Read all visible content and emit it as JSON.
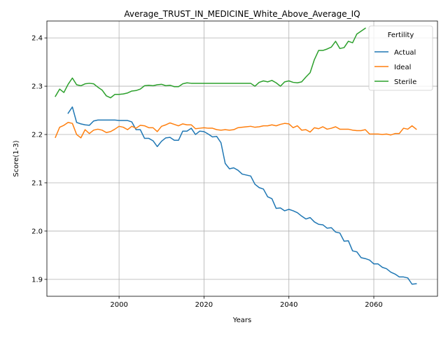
{
  "chart_data": {
    "type": "line",
    "title": "Average_TRUST_IN_MEDICINE_White_Above_Average_IQ",
    "xlabel": "Years",
    "ylabel": "Score(1-3)",
    "xlim": [
      1983,
      2075
    ],
    "ylim": [
      1.865,
      2.435
    ],
    "xticks": [
      2000,
      2020,
      2040,
      2060
    ],
    "yticks": [
      1.9,
      2.0,
      2.1,
      2.2,
      2.3,
      2.4
    ],
    "grid": true,
    "legend": {
      "title": "Fertility",
      "placement": "upper-right"
    },
    "series": [
      {
        "name": "Actual",
        "color": "#1f77b4",
        "points": [
          [
            1988,
            2.244
          ],
          [
            1989,
            2.257
          ],
          [
            1990,
            2.225
          ],
          [
            1991,
            2.222
          ],
          [
            1992,
            2.22
          ],
          [
            1993,
            2.219
          ],
          [
            1994,
            2.228
          ],
          [
            1995,
            2.23
          ],
          [
            1996,
            2.23
          ],
          [
            1997,
            2.23
          ],
          [
            1998,
            2.23
          ],
          [
            1999,
            2.23
          ],
          [
            2000,
            2.229
          ],
          [
            2001,
            2.229
          ],
          [
            2002,
            2.229
          ],
          [
            2003,
            2.226
          ],
          [
            2004,
            2.21
          ],
          [
            2005,
            2.21
          ],
          [
            2006,
            2.192
          ],
          [
            2007,
            2.192
          ],
          [
            2008,
            2.187
          ],
          [
            2009,
            2.175
          ],
          [
            2010,
            2.186
          ],
          [
            2011,
            2.193
          ],
          [
            2012,
            2.194
          ],
          [
            2013,
            2.188
          ],
          [
            2014,
            2.188
          ],
          [
            2015,
            2.207
          ],
          [
            2016,
            2.207
          ],
          [
            2017,
            2.213
          ],
          [
            2018,
            2.2
          ],
          [
            2019,
            2.207
          ],
          [
            2020,
            2.206
          ],
          [
            2021,
            2.201
          ],
          [
            2022,
            2.195
          ],
          [
            2023,
            2.196
          ],
          [
            2024,
            2.183
          ],
          [
            2025,
            2.14
          ],
          [
            2026,
            2.129
          ],
          [
            2027,
            2.131
          ],
          [
            2028,
            2.126
          ],
          [
            2029,
            2.118
          ],
          [
            2030,
            2.116
          ],
          [
            2031,
            2.114
          ],
          [
            2032,
            2.097
          ],
          [
            2033,
            2.09
          ],
          [
            2034,
            2.087
          ],
          [
            2035,
            2.071
          ],
          [
            2036,
            2.067
          ],
          [
            2037,
            2.047
          ],
          [
            2038,
            2.048
          ],
          [
            2039,
            2.042
          ],
          [
            2040,
            2.045
          ],
          [
            2041,
            2.042
          ],
          [
            2042,
            2.038
          ],
          [
            2043,
            2.031
          ],
          [
            2044,
            2.025
          ],
          [
            2045,
            2.028
          ],
          [
            2046,
            2.019
          ],
          [
            2047,
            2.014
          ],
          [
            2048,
            2.013
          ],
          [
            2049,
            2.006
          ],
          [
            2050,
            2.007
          ],
          [
            2051,
            1.998
          ],
          [
            2052,
            1.996
          ],
          [
            2053,
            1.979
          ],
          [
            2054,
            1.98
          ],
          [
            2055,
            1.959
          ],
          [
            2056,
            1.957
          ],
          [
            2057,
            1.945
          ],
          [
            2058,
            1.943
          ],
          [
            2059,
            1.94
          ],
          [
            2060,
            1.932
          ],
          [
            2061,
            1.932
          ],
          [
            2062,
            1.925
          ],
          [
            2063,
            1.922
          ],
          [
            2064,
            1.915
          ],
          [
            2065,
            1.911
          ],
          [
            2066,
            1.905
          ],
          [
            2067,
            1.905
          ],
          [
            2068,
            1.903
          ],
          [
            2069,
            1.89
          ],
          [
            2070,
            1.891
          ]
        ]
      },
      {
        "name": "Ideal",
        "color": "#ff7f0e",
        "points": [
          [
            1985,
            2.194
          ],
          [
            1986,
            2.215
          ],
          [
            1987,
            2.219
          ],
          [
            1988,
            2.225
          ],
          [
            1989,
            2.223
          ],
          [
            1990,
            2.2
          ],
          [
            1991,
            2.193
          ],
          [
            1992,
            2.21
          ],
          [
            1993,
            2.202
          ],
          [
            1994,
            2.209
          ],
          [
            1995,
            2.211
          ],
          [
            1996,
            2.209
          ],
          [
            1997,
            2.204
          ],
          [
            1998,
            2.206
          ],
          [
            1999,
            2.211
          ],
          [
            2000,
            2.217
          ],
          [
            2001,
            2.215
          ],
          [
            2002,
            2.21
          ],
          [
            2003,
            2.217
          ],
          [
            2004,
            2.213
          ],
          [
            2005,
            2.219
          ],
          [
            2006,
            2.218
          ],
          [
            2007,
            2.214
          ],
          [
            2008,
            2.214
          ],
          [
            2009,
            2.206
          ],
          [
            2010,
            2.217
          ],
          [
            2011,
            2.22
          ],
          [
            2012,
            2.224
          ],
          [
            2013,
            2.221
          ],
          [
            2014,
            2.218
          ],
          [
            2015,
            2.222
          ],
          [
            2016,
            2.22
          ],
          [
            2017,
            2.22
          ],
          [
            2018,
            2.212
          ],
          [
            2019,
            2.213
          ],
          [
            2020,
            2.214
          ],
          [
            2021,
            2.213
          ],
          [
            2022,
            2.213
          ],
          [
            2023,
            2.21
          ],
          [
            2024,
            2.209
          ],
          [
            2025,
            2.21
          ],
          [
            2026,
            2.209
          ],
          [
            2027,
            2.21
          ],
          [
            2028,
            2.214
          ],
          [
            2029,
            2.215
          ],
          [
            2030,
            2.216
          ],
          [
            2031,
            2.217
          ],
          [
            2032,
            2.215
          ],
          [
            2033,
            2.216
          ],
          [
            2034,
            2.218
          ],
          [
            2035,
            2.218
          ],
          [
            2036,
            2.22
          ],
          [
            2037,
            2.218
          ],
          [
            2038,
            2.221
          ],
          [
            2039,
            2.223
          ],
          [
            2040,
            2.222
          ],
          [
            2041,
            2.214
          ],
          [
            2042,
            2.218
          ],
          [
            2043,
            2.209
          ],
          [
            2044,
            2.21
          ],
          [
            2045,
            2.205
          ],
          [
            2046,
            2.214
          ],
          [
            2047,
            2.212
          ],
          [
            2048,
            2.216
          ],
          [
            2049,
            2.211
          ],
          [
            2050,
            2.213
          ],
          [
            2051,
            2.216
          ],
          [
            2052,
            2.211
          ],
          [
            2053,
            2.211
          ],
          [
            2054,
            2.211
          ],
          [
            2055,
            2.209
          ],
          [
            2056,
            2.208
          ],
          [
            2057,
            2.208
          ],
          [
            2058,
            2.21
          ],
          [
            2059,
            2.201
          ],
          [
            2060,
            2.201
          ],
          [
            2061,
            2.201
          ],
          [
            2062,
            2.2
          ],
          [
            2063,
            2.201
          ],
          [
            2064,
            2.199
          ],
          [
            2065,
            2.202
          ],
          [
            2066,
            2.202
          ],
          [
            2067,
            2.213
          ],
          [
            2068,
            2.211
          ],
          [
            2069,
            2.218
          ],
          [
            2070,
            2.211
          ]
        ]
      },
      {
        "name": "Sterile",
        "color": "#2ca02c",
        "points": [
          [
            1985,
            2.279
          ],
          [
            1986,
            2.294
          ],
          [
            1987,
            2.287
          ],
          [
            1988,
            2.304
          ],
          [
            1989,
            2.317
          ],
          [
            1990,
            2.303
          ],
          [
            1991,
            2.301
          ],
          [
            1992,
            2.305
          ],
          [
            1993,
            2.306
          ],
          [
            1994,
            2.305
          ],
          [
            1995,
            2.298
          ],
          [
            1996,
            2.292
          ],
          [
            1997,
            2.28
          ],
          [
            1998,
            2.276
          ],
          [
            1999,
            2.283
          ],
          [
            2000,
            2.283
          ],
          [
            2001,
            2.284
          ],
          [
            2002,
            2.286
          ],
          [
            2003,
            2.29
          ],
          [
            2004,
            2.291
          ],
          [
            2005,
            2.294
          ],
          [
            2006,
            2.301
          ],
          [
            2007,
            2.302
          ],
          [
            2008,
            2.301
          ],
          [
            2009,
            2.303
          ],
          [
            2010,
            2.304
          ],
          [
            2011,
            2.301
          ],
          [
            2012,
            2.302
          ],
          [
            2013,
            2.299
          ],
          [
            2014,
            2.299
          ],
          [
            2015,
            2.305
          ],
          [
            2016,
            2.307
          ],
          [
            2017,
            2.306
          ],
          [
            2018,
            2.306
          ],
          [
            2019,
            2.306
          ],
          [
            2020,
            2.306
          ],
          [
            2021,
            2.306
          ],
          [
            2022,
            2.306
          ],
          [
            2023,
            2.306
          ],
          [
            2024,
            2.306
          ],
          [
            2025,
            2.306
          ],
          [
            2026,
            2.306
          ],
          [
            2027,
            2.306
          ],
          [
            2028,
            2.306
          ],
          [
            2029,
            2.306
          ],
          [
            2030,
            2.306
          ],
          [
            2031,
            2.306
          ],
          [
            2032,
            2.3
          ],
          [
            2033,
            2.308
          ],
          [
            2034,
            2.311
          ],
          [
            2035,
            2.309
          ],
          [
            2036,
            2.312
          ],
          [
            2037,
            2.307
          ],
          [
            2038,
            2.3
          ],
          [
            2039,
            2.309
          ],
          [
            2040,
            2.311
          ],
          [
            2041,
            2.308
          ],
          [
            2042,
            2.307
          ],
          [
            2043,
            2.309
          ],
          [
            2044,
            2.319
          ],
          [
            2045,
            2.328
          ],
          [
            2046,
            2.355
          ],
          [
            2047,
            2.374
          ],
          [
            2048,
            2.374
          ],
          [
            2049,
            2.377
          ],
          [
            2050,
            2.381
          ],
          [
            2051,
            2.393
          ],
          [
            2052,
            2.378
          ],
          [
            2053,
            2.38
          ],
          [
            2054,
            2.393
          ],
          [
            2055,
            2.39
          ],
          [
            2056,
            2.408
          ],
          [
            2057,
            2.414
          ],
          [
            2058,
            2.42
          ]
        ]
      }
    ]
  }
}
